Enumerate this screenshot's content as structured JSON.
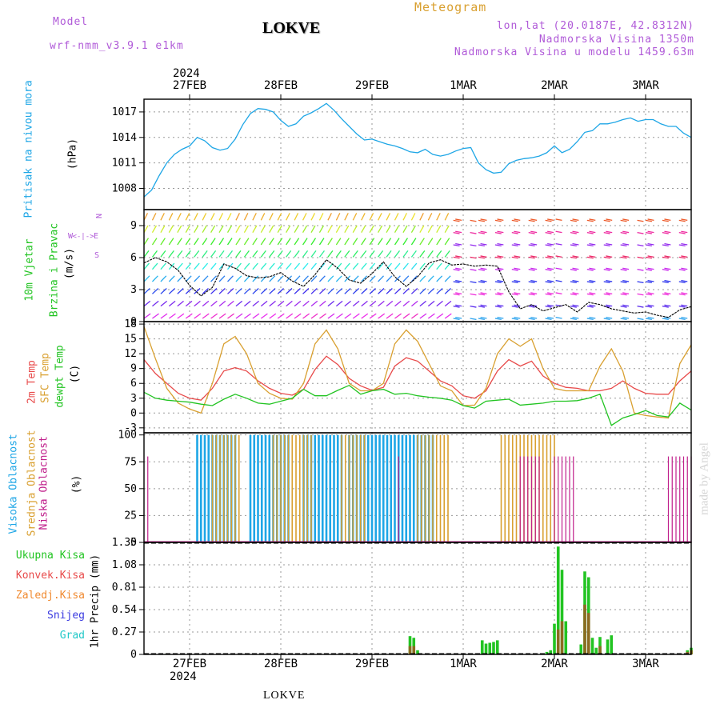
{
  "header": {
    "model_label": "Model",
    "model_name": "wrf-nmm_v3.9.1 e1km",
    "title": "LOKVE",
    "meteogram": "Meteogram",
    "lonlat": "lon,lat (20.0187E, 42.8312N)",
    "elevation": "Nadmorska Visina 1350m",
    "model_elevation": "Nadmorska Visina u modelu 1459.63m",
    "watermark": "made by Angel",
    "footer_station": "LOKVE"
  },
  "colors": {
    "pressure": "#1ea6e6",
    "temp2m": "#e84a4a",
    "sfc_temp": "#d9a030",
    "dewpoint": "#22c422",
    "cloud_high": "#1ea6e6",
    "cloud_mid": "#d9a030",
    "cloud_low": "#c0208c",
    "precip_total": "#22c422",
    "precip_conv": "#e84a4a",
    "precip_frozen": "#f08a30",
    "snow": "#3a3ae0",
    "hail": "#20c8c8",
    "model_purple": "#b05ad8"
  },
  "time_axis": {
    "top_year": "2024",
    "bottom_year": "2024",
    "days": [
      "27FEB",
      "28FEB",
      "29FEB",
      "1MAR",
      "2MAR",
      "3MAR"
    ],
    "hours_start": 0,
    "hours_end": 144
  },
  "chart_data": [
    {
      "type": "line",
      "panel": "pressure",
      "ylabel_lines": [
        "Pritisak na nivou mora",
        "(hPa)"
      ],
      "yticks": [
        1008,
        1011,
        1014,
        1017
      ],
      "ylim": [
        1005.5,
        1018.5
      ],
      "x": [
        0,
        2,
        4,
        6,
        8,
        10,
        12,
        14,
        16,
        18,
        20,
        22,
        24,
        26,
        28,
        30,
        32,
        34,
        36,
        38,
        40,
        42,
        44,
        46,
        48,
        50,
        52,
        54,
        56,
        58,
        60,
        62,
        64,
        66,
        68,
        70,
        72,
        74,
        76,
        78,
        80,
        82,
        84,
        86,
        88,
        90,
        92,
        94,
        96,
        98,
        100,
        102,
        104,
        106,
        108,
        110,
        112,
        114,
        116,
        118,
        120,
        122,
        124,
        126,
        128,
        130,
        132,
        134,
        136,
        138,
        140,
        142,
        144
      ],
      "series": [
        {
          "name": "Pritisak na nivou mora",
          "values": [
            1007,
            1007.8,
            1009.5,
            1011,
            1012,
            1012.6,
            1013,
            1014,
            1013.6,
            1012.8,
            1012.5,
            1012.7,
            1013.8,
            1015.5,
            1016.8,
            1017.4,
            1017.3,
            1017.0,
            1016.0,
            1015.3,
            1015.6,
            1016.5,
            1016.9,
            1017.4,
            1018.0,
            1017.2,
            1016.2,
            1015.3,
            1014.4,
            1013.7,
            1013.8,
            1013.5,
            1013.2,
            1013.0,
            1012.7,
            1012.3,
            1012.2,
            1012.6,
            1012.0,
            1011.8,
            1012.0,
            1012.4,
            1012.7,
            1012.8,
            1011.0,
            1010.2,
            1009.8,
            1009.9,
            1010.9,
            1011.3,
            1011.5,
            1011.6,
            1011.8,
            1012.2,
            1013.0,
            1012.2,
            1012.6,
            1013.5,
            1014.6,
            1014.8,
            1015.6,
            1015.6,
            1015.8,
            1016.1,
            1016.3,
            1015.9,
            1016.1,
            1016.1,
            1015.6,
            1015.3,
            1015.3,
            1014.5,
            1014.0
          ]
        }
      ]
    },
    {
      "type": "line",
      "panel": "wind",
      "ylabel_lines": [
        "10m Vjetar",
        "Brzina i Pravac",
        "(m/s)"
      ],
      "compass": [
        "N",
        "<-|->",
        "E",
        "W",
        "S"
      ],
      "yticks": [
        0,
        3,
        6,
        9
      ],
      "ylim": [
        0,
        10.5
      ],
      "x": [
        0,
        3,
        6,
        9,
        12,
        15,
        18,
        21,
        24,
        27,
        30,
        33,
        36,
        39,
        42,
        45,
        48,
        51,
        54,
        57,
        60,
        63,
        66,
        69,
        72,
        75,
        78,
        81,
        84,
        87,
        90,
        93,
        96,
        99,
        102,
        105,
        108,
        111,
        114,
        117,
        120,
        123,
        126,
        129,
        132,
        135,
        138,
        141,
        144
      ],
      "series": [
        {
          "name": "wind speed",
          "values": [
            5.5,
            6.0,
            5.6,
            4.8,
            3.4,
            2.4,
            3.2,
            5.4,
            5.0,
            4.3,
            4.1,
            4.2,
            4.6,
            3.8,
            3.3,
            4.4,
            5.8,
            5.0,
            3.9,
            3.6,
            4.5,
            5.6,
            4.2,
            3.3,
            4.2,
            5.5,
            5.8,
            5.3,
            5.4,
            5.2,
            5.3,
            5.2,
            2.8,
            1.2,
            1.6,
            1.0,
            1.3,
            1.6,
            0.9,
            1.8,
            1.6,
            1.2,
            1.0,
            0.8,
            0.9,
            0.6,
            0.4,
            1.1,
            1.4
          ]
        }
      ]
    },
    {
      "type": "line",
      "panel": "temperature",
      "ylabel_lines": [
        "2m Temp",
        "SFC Temp",
        "dewpt Temp",
        "(C)"
      ],
      "yticks": [
        -3,
        0,
        3,
        6,
        9,
        12,
        15,
        18
      ],
      "ylim": [
        -4,
        18.5
      ],
      "x": [
        0,
        3,
        6,
        9,
        12,
        15,
        18,
        21,
        24,
        27,
        30,
        33,
        36,
        39,
        42,
        45,
        48,
        51,
        54,
        57,
        60,
        63,
        66,
        69,
        72,
        75,
        78,
        81,
        84,
        87,
        90,
        93,
        96,
        99,
        102,
        105,
        108,
        111,
        114,
        117,
        120,
        123,
        126,
        129,
        132,
        135,
        138,
        141,
        144
      ],
      "series": [
        {
          "name": "2m Temp",
          "values": [
            10.8,
            8,
            6,
            4,
            3,
            2.6,
            5,
            8.5,
            9.2,
            8.5,
            6.5,
            5,
            4,
            3.6,
            4.8,
            8.8,
            11.5,
            9.8,
            7,
            5.5,
            4.6,
            5.2,
            9.5,
            11.2,
            10.5,
            8.5,
            6.5,
            5.5,
            3.5,
            3.0,
            4.5,
            8.5,
            10.8,
            9.5,
            10.5,
            7.5,
            6.0,
            5.2,
            5.0,
            4.5,
            4.5,
            5.0,
            6.5,
            5.0,
            4.0,
            3.8,
            3.8,
            6.5,
            8.5
          ]
        },
        {
          "name": "SFC Temp",
          "values": [
            17.5,
            11,
            5,
            2,
            0.8,
            0,
            6,
            14,
            15.5,
            12,
            6,
            4,
            3,
            2.8,
            6,
            14,
            16.8,
            13,
            6,
            4.5,
            4.5,
            6,
            14,
            16.8,
            14.5,
            10,
            5.5,
            4.5,
            1.5,
            1.6,
            5,
            12,
            15,
            13.5,
            15,
            9,
            5,
            4.5,
            4.5,
            4.5,
            9.5,
            13,
            8.5,
            0,
            -0.5,
            -0.8,
            -1.0,
            10,
            13.8
          ]
        },
        {
          "name": "dewpt Temp",
          "values": [
            4.2,
            3,
            2.6,
            2.4,
            2.2,
            1.8,
            1.5,
            2.8,
            3.8,
            3,
            2.0,
            1.8,
            2.4,
            3.0,
            4.8,
            3.5,
            3.5,
            4.6,
            5.6,
            3.8,
            4.5,
            4.8,
            3.8,
            4.0,
            3.5,
            3.2,
            3.0,
            2.6,
            1.5,
            1.0,
            2.4,
            2.6,
            2.8,
            1.6,
            1.8,
            2.0,
            2.4,
            2.4,
            2.5,
            3.0,
            3.8,
            -2.5,
            -1.0,
            -0.3,
            0.5,
            -0.5,
            -0.8,
            2.0,
            0.6
          ]
        }
      ]
    },
    {
      "type": "bar",
      "panel": "clouds",
      "ylabel_lines": [
        "Visoka Oblacnost",
        "Srednja Oblacnost",
        "Niska Oblacnost",
        "(%)"
      ],
      "yticks": [
        0,
        25,
        50,
        75,
        100
      ],
      "ylim": [
        0,
        102
      ],
      "series": [
        {
          "name": "Visoka Oblacnost",
          "spans": [
            [
              14,
              24
            ],
            [
              28,
              38
            ],
            [
              42,
              52
            ],
            [
              54,
              76
            ]
          ],
          "values_pct": 100
        },
        {
          "name": "Srednja Oblacnost",
          "spans": [
            [
              18,
              25
            ],
            [
              34,
              44
            ],
            [
              52,
              58
            ],
            [
              72,
              80
            ],
            [
              94,
              108
            ]
          ],
          "values_pct": 100
        },
        {
          "name": "Niska Oblacnost",
          "spans": [
            [
              1,
              1.5
            ],
            [
              67,
              67.5
            ],
            [
              99,
              104
            ],
            [
              108,
              113
            ],
            [
              138,
              144
            ]
          ],
          "values_pct": 80
        }
      ]
    },
    {
      "type": "bar",
      "panel": "precipitation",
      "ylabel_lines": [
        "1hr Precip (mm)"
      ],
      "legend": [
        "Ukupna Kisa",
        "Konvek.Kisa",
        "Zaledj.Kisa",
        "Snijeg",
        "Grad"
      ],
      "yticks": [
        0,
        0.27,
        0.54,
        0.81,
        1.08,
        1.35
      ],
      "ylim": [
        0,
        1.35
      ],
      "series": [
        {
          "name": "Ukupna Kisa",
          "x": [
            6,
            33,
            70,
            71,
            72,
            89,
            90,
            91,
            92,
            93,
            106,
            107,
            108,
            109,
            110,
            111,
            115,
            116,
            117,
            118,
            119,
            120,
            122,
            123,
            143,
            144
          ],
          "values": [
            0.01,
            0.01,
            0.22,
            0.2,
            0.05,
            0.17,
            0.13,
            0.14,
            0.15,
            0.17,
            0.03,
            0.05,
            0.37,
            1.3,
            1.02,
            0.4,
            0.12,
            1.0,
            0.93,
            0.2,
            0.08,
            0.21,
            0.18,
            0.23,
            0.05,
            0.08
          ]
        },
        {
          "name": "Konvek.Kisa",
          "x": [
            70,
            71,
            109,
            110,
            116,
            117,
            120,
            143,
            144
          ],
          "values": [
            0.1,
            0.1,
            0.3,
            0.4,
            0.6,
            0.5,
            0.1,
            0.03,
            0.05
          ]
        }
      ]
    }
  ]
}
